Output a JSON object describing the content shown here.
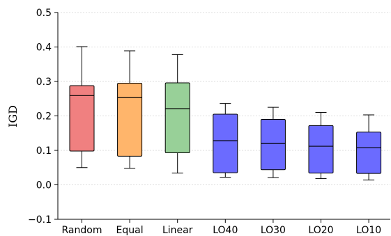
{
  "chart_data": {
    "type": "box",
    "title": "",
    "xlabel": "",
    "ylabel": "IGD",
    "ylim": [
      -0.1,
      0.5
    ],
    "yticks": [
      -0.1,
      0.0,
      0.1,
      0.2,
      0.3,
      0.4,
      0.5
    ],
    "ytick_labels": [
      "−0.1",
      "0.0",
      "0.1",
      "0.2",
      "0.3",
      "0.4",
      "0.5"
    ],
    "grid": "horizontal-dashed",
    "categories": [
      "Random",
      "Equal",
      "Linear",
      "LO40",
      "LO30",
      "LO20",
      "LO10"
    ],
    "boxes": [
      {
        "label": "Random",
        "whisker_low": 0.05,
        "q1": 0.098,
        "median": 0.259,
        "q3": 0.288,
        "whisker_high": 0.401,
        "color": "#f08080"
      },
      {
        "label": "Equal",
        "whisker_low": 0.048,
        "q1": 0.083,
        "median": 0.253,
        "q3": 0.295,
        "whisker_high": 0.389,
        "color": "#ffb56b"
      },
      {
        "label": "Linear",
        "whisker_low": 0.034,
        "q1": 0.093,
        "median": 0.221,
        "q3": 0.296,
        "whisker_high": 0.378,
        "color": "#98d098"
      },
      {
        "label": "LO40",
        "whisker_low": 0.022,
        "q1": 0.035,
        "median": 0.128,
        "q3": 0.205,
        "whisker_high": 0.236,
        "color": "#6b6bff"
      },
      {
        "label": "LO30",
        "whisker_low": 0.021,
        "q1": 0.044,
        "median": 0.12,
        "q3": 0.19,
        "whisker_high": 0.225,
        "color": "#6b6bff"
      },
      {
        "label": "LO20",
        "whisker_low": 0.018,
        "q1": 0.034,
        "median": 0.112,
        "q3": 0.172,
        "whisker_high": 0.21,
        "color": "#6b6bff"
      },
      {
        "label": "LO10",
        "whisker_low": 0.014,
        "q1": 0.033,
        "median": 0.108,
        "q3": 0.153,
        "whisker_high": 0.203,
        "color": "#6b6bff"
      }
    ]
  }
}
